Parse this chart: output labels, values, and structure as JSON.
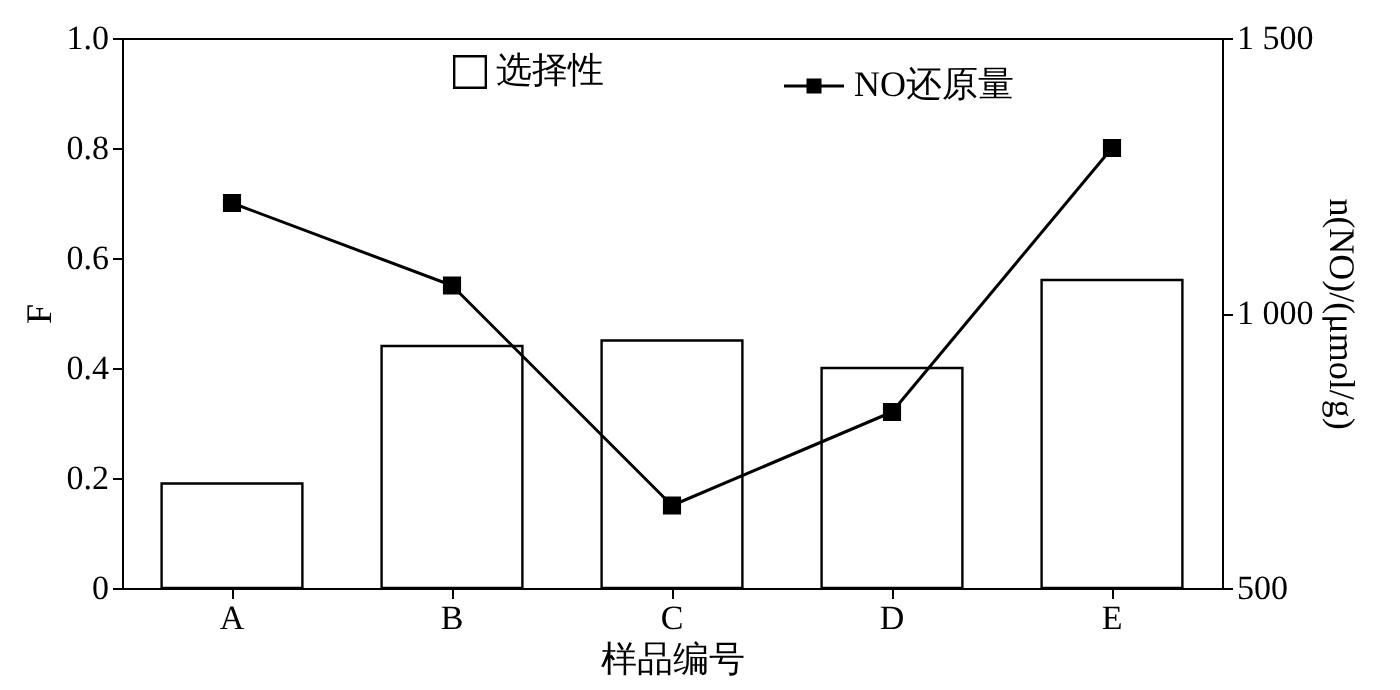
{
  "chart_data": {
    "type": "bar",
    "xlabel": "样品编号",
    "ylabel": "F",
    "y2label": "n(NO)/(μmol/g)",
    "categories": [
      "A",
      "B",
      "C",
      "D",
      "E"
    ],
    "series": [
      {
        "name": "选择性",
        "color": "#ffffff",
        "values": [
          0.19,
          0.44,
          0.45,
          0.4,
          0.56
        ]
      },
      {
        "name": "NO还原量",
        "type": "line",
        "axis": "y2",
        "color": "#000000",
        "values": [
          1200,
          1050,
          650,
          820,
          1300
        ]
      }
    ],
    "ylim": [
      0,
      1.0
    ],
    "yticks": [
      0,
      {
        "value": 0.2,
        "label": "0.2"
      },
      {
        "value": 0.4,
        "label": "0.4"
      },
      {
        "value": 0.6,
        "label": "0.6"
      },
      {
        "value": 0.8,
        "label": "0.8"
      },
      {
        "value": 1.0,
        "label": "1.0"
      }
    ],
    "y2lim": [
      500,
      1500
    ],
    "y2ticks": [
      500,
      {
        "value": 1000,
        "label": "1 000"
      },
      {
        "value": 1500,
        "label": "1 500"
      }
    ],
    "marker": "square",
    "line_style": "solid",
    "grid": false,
    "legend": "top right"
  }
}
